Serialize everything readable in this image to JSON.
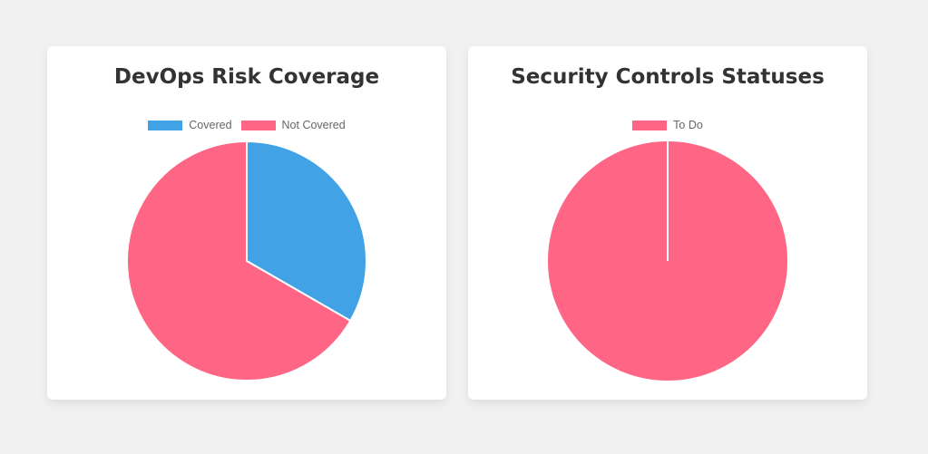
{
  "chart_data": [
    {
      "type": "pie",
      "title": "DevOps Risk Coverage",
      "categories": [
        "Covered",
        "Not Covered"
      ],
      "values": [
        1,
        2
      ],
      "colors": [
        "#41a3e5",
        "#ff6584"
      ]
    },
    {
      "type": "pie",
      "title": "Security Controls Statuses",
      "categories": [
        "To Do"
      ],
      "values": [
        1
      ],
      "colors": [
        "#ff6584"
      ]
    }
  ]
}
